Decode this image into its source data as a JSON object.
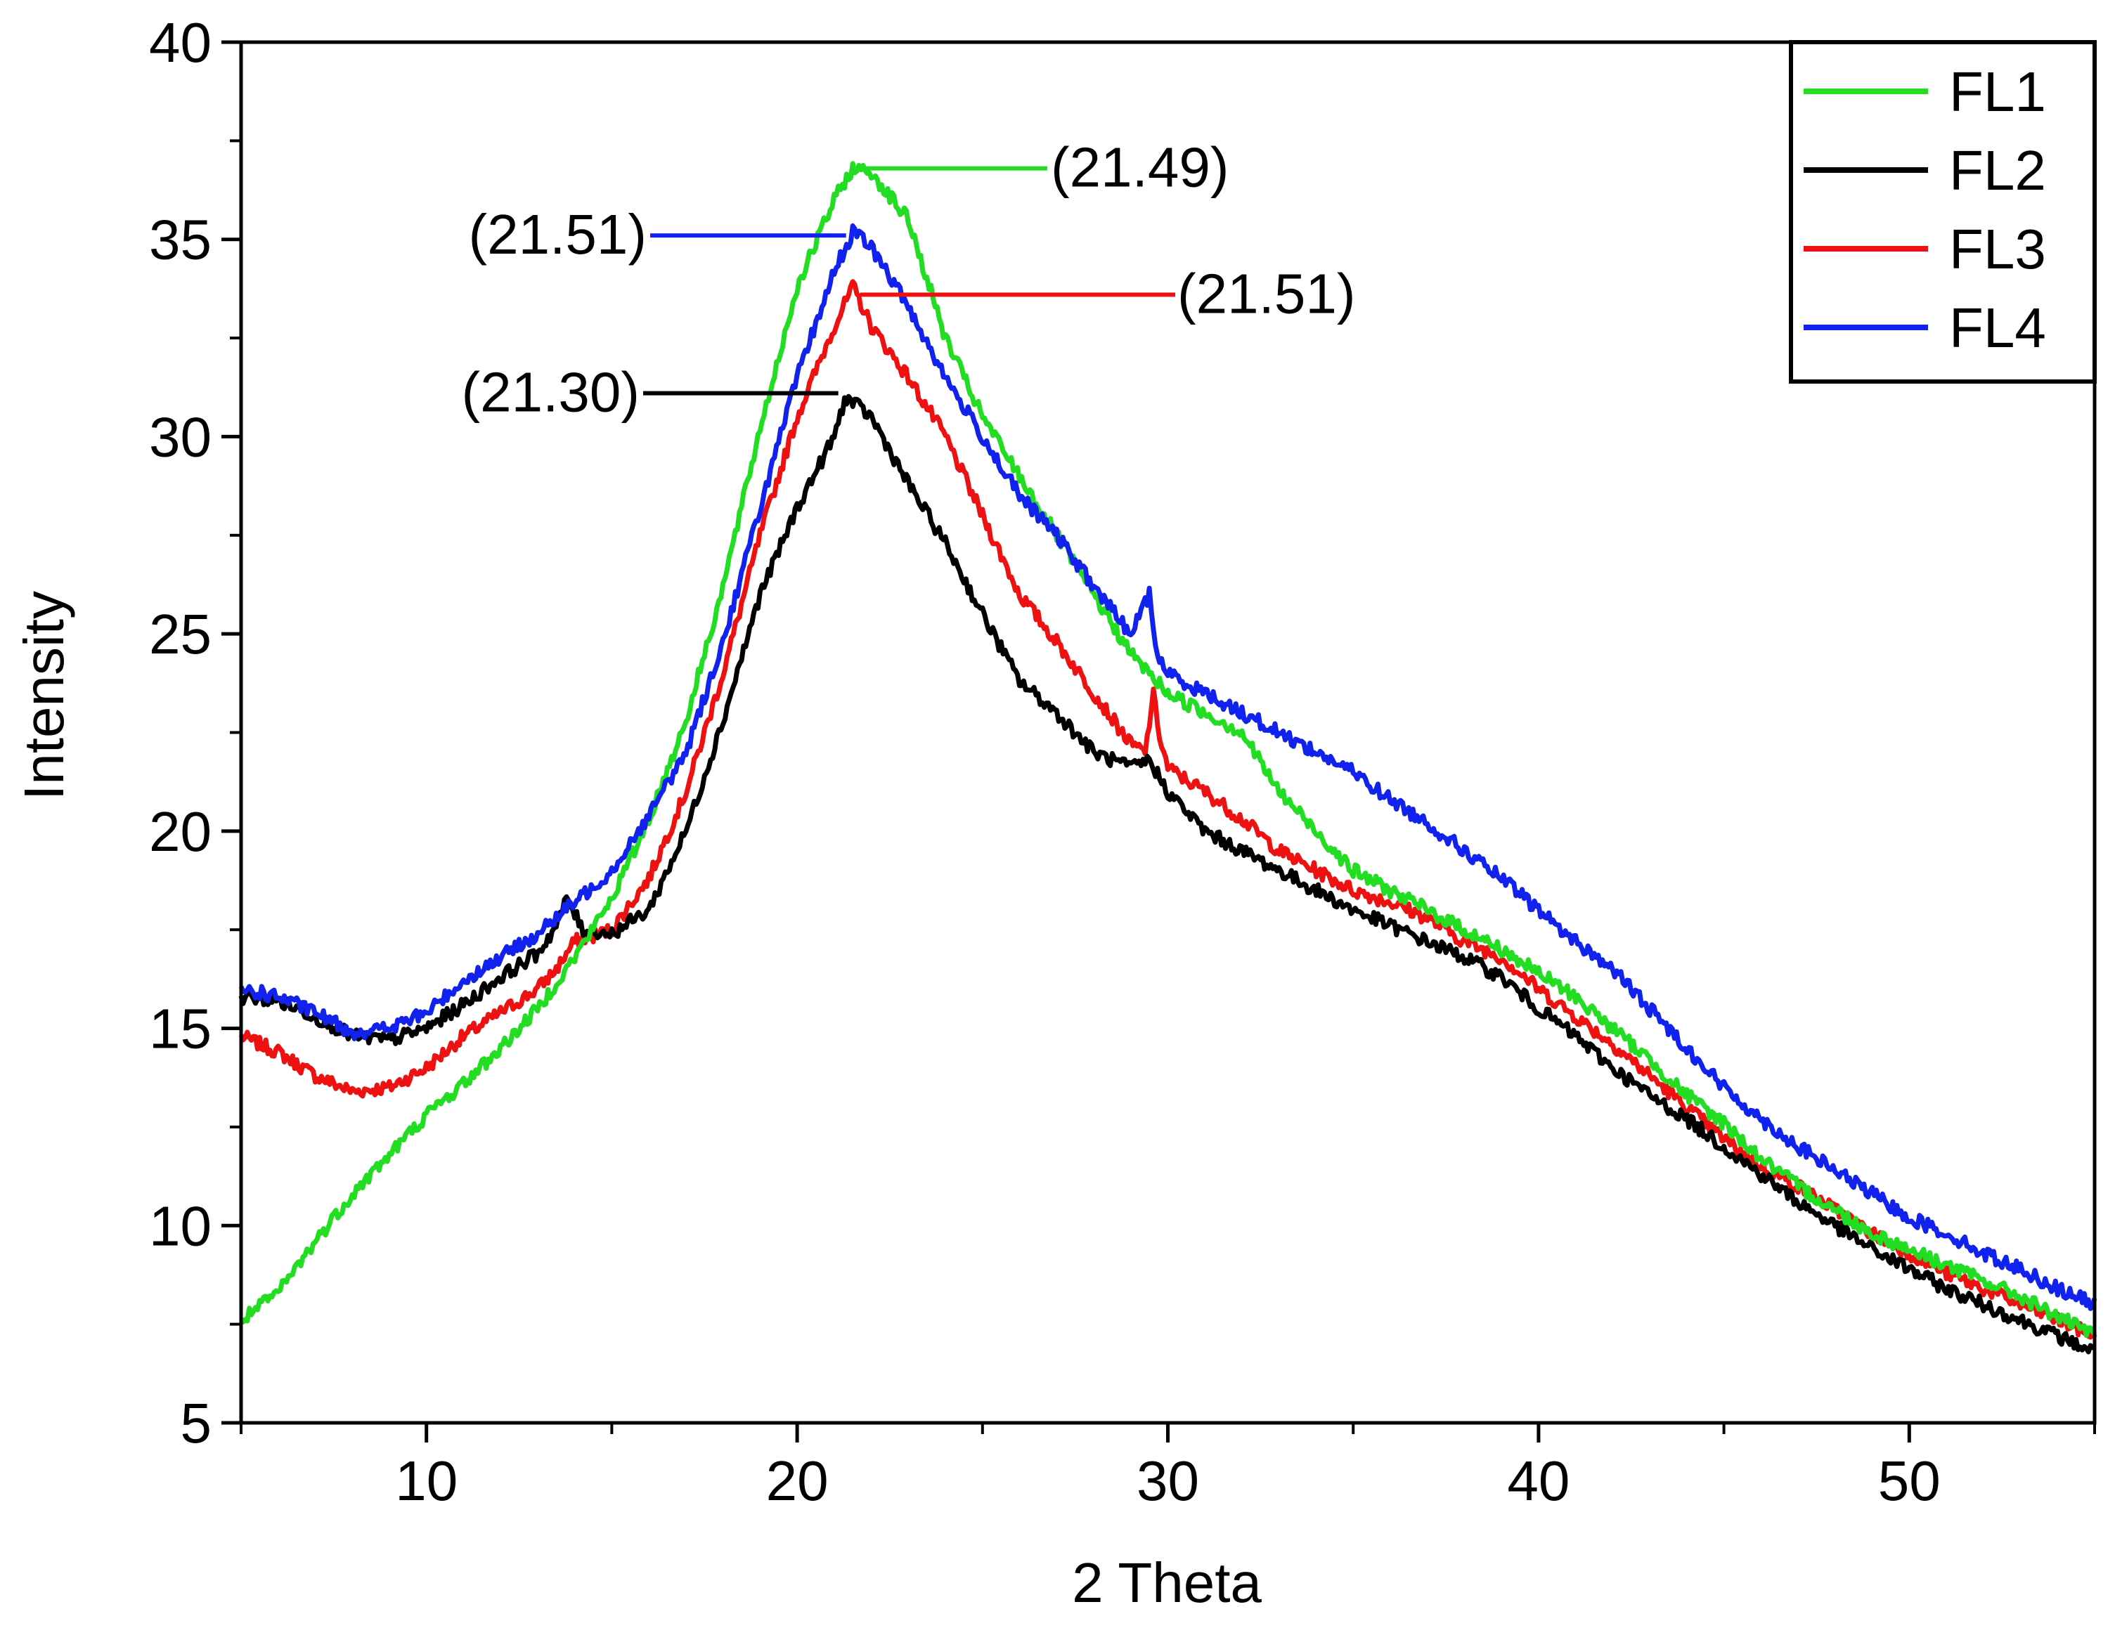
{
  "chart_data": {
    "type": "line",
    "title": "",
    "xlabel": "2 Theta",
    "ylabel": "Intensity",
    "xlim": [
      5,
      55
    ],
    "ylim": [
      5,
      40
    ],
    "xticks": [
      10,
      20,
      30,
      40,
      50
    ],
    "yticks": [
      5,
      10,
      15,
      20,
      25,
      30,
      35,
      40
    ],
    "grid": false,
    "legend_position": "top-right",
    "series": [
      {
        "name": "FL1",
        "color": "#22dd22",
        "points": [
          [
            5,
            7.6
          ],
          [
            6,
            8.3
          ],
          [
            7,
            9.6
          ],
          [
            8,
            10.8
          ],
          [
            9,
            11.8
          ],
          [
            10,
            12.8
          ],
          [
            11,
            13.6
          ],
          [
            12,
            14.5
          ],
          [
            13,
            15.5
          ],
          [
            14,
            16.8
          ],
          [
            15,
            18.3
          ],
          [
            16,
            20.3
          ],
          [
            17,
            22.8
          ],
          [
            18,
            26.2
          ],
          [
            19,
            30.2
          ],
          [
            20,
            33.8
          ],
          [
            21,
            36.0
          ],
          [
            21.49,
            36.8
          ],
          [
            22,
            36.7
          ],
          [
            23,
            35.5
          ],
          [
            24,
            32.5
          ],
          [
            25,
            30.5
          ],
          [
            26,
            29.0
          ],
          [
            27,
            27.5
          ],
          [
            28,
            26.0
          ],
          [
            29,
            24.5
          ],
          [
            30,
            23.5
          ],
          [
            31,
            23.0
          ],
          [
            32,
            22.5
          ],
          [
            33,
            21.0
          ],
          [
            34,
            20.0
          ],
          [
            35,
            19.0
          ],
          [
            36,
            18.5
          ],
          [
            37,
            18.0
          ],
          [
            38,
            17.5
          ],
          [
            39,
            17.0
          ],
          [
            40,
            16.4
          ],
          [
            41,
            15.8
          ],
          [
            42,
            15.0
          ],
          [
            43,
            14.2
          ],
          [
            44,
            13.3
          ],
          [
            45,
            12.6
          ],
          [
            46,
            11.7
          ],
          [
            47,
            11.0
          ],
          [
            48,
            10.4
          ],
          [
            49,
            9.8
          ],
          [
            50,
            9.4
          ],
          [
            51,
            9.0
          ],
          [
            52,
            8.6
          ],
          [
            53,
            8.2
          ],
          [
            54,
            7.7
          ],
          [
            55,
            7.2
          ]
        ]
      },
      {
        "name": "FL2",
        "color": "#000000",
        "points": [
          [
            5,
            15.8
          ],
          [
            6,
            15.7
          ],
          [
            7,
            15.3
          ],
          [
            8,
            14.8
          ],
          [
            9,
            14.7
          ],
          [
            10,
            15.0
          ],
          [
            11,
            15.6
          ],
          [
            12,
            16.3
          ],
          [
            13,
            16.9
          ],
          [
            13.5,
            17.6
          ],
          [
            13.8,
            18.3
          ],
          [
            14.2,
            17.5
          ],
          [
            15,
            17.4
          ],
          [
            16,
            18.0
          ],
          [
            17,
            20.0
          ],
          [
            18,
            22.8
          ],
          [
            19,
            26.0
          ],
          [
            20,
            28.2
          ],
          [
            21,
            30.0
          ],
          [
            21.3,
            31.0
          ],
          [
            22,
            30.5
          ],
          [
            23,
            28.8
          ],
          [
            24,
            27.3
          ],
          [
            25,
            25.5
          ],
          [
            26,
            23.8
          ],
          [
            27,
            23.0
          ],
          [
            28,
            22.0
          ],
          [
            29,
            21.6
          ],
          [
            29.5,
            21.8
          ],
          [
            30,
            21.0
          ],
          [
            31,
            20.0
          ],
          [
            32,
            19.5
          ],
          [
            33,
            19.0
          ],
          [
            34,
            18.5
          ],
          [
            35,
            18.0
          ],
          [
            36,
            17.6
          ],
          [
            37,
            17.2
          ],
          [
            38,
            16.8
          ],
          [
            39,
            16.3
          ],
          [
            40,
            15.5
          ],
          [
            41,
            14.8
          ],
          [
            42,
            14.0
          ],
          [
            43,
            13.3
          ],
          [
            44,
            12.7
          ],
          [
            45,
            12.0
          ],
          [
            46,
            11.3
          ],
          [
            47,
            10.6
          ],
          [
            48,
            10.0
          ],
          [
            49,
            9.4
          ],
          [
            50,
            8.9
          ],
          [
            51,
            8.4
          ],
          [
            52,
            8.0
          ],
          [
            53,
            7.6
          ],
          [
            54,
            7.2
          ],
          [
            55,
            6.8
          ]
        ]
      },
      {
        "name": "FL3",
        "color": "#ee1111",
        "points": [
          [
            5,
            14.8
          ],
          [
            6,
            14.4
          ],
          [
            7,
            13.8
          ],
          [
            8,
            13.4
          ],
          [
            9,
            13.5
          ],
          [
            10,
            14.0
          ],
          [
            11,
            14.8
          ],
          [
            12,
            15.4
          ],
          [
            13,
            16.0
          ],
          [
            13.5,
            16.5
          ],
          [
            14,
            17.2
          ],
          [
            15,
            17.5
          ],
          [
            16,
            18.8
          ],
          [
            17,
            21.0
          ],
          [
            18,
            24.0
          ],
          [
            19,
            27.5
          ],
          [
            20,
            30.5
          ],
          [
            21,
            32.8
          ],
          [
            21.51,
            33.8
          ],
          [
            22,
            32.8
          ],
          [
            23,
            31.5
          ],
          [
            24,
            30.0
          ],
          [
            25,
            28.0
          ],
          [
            26,
            26.0
          ],
          [
            27,
            24.8
          ],
          [
            28,
            23.5
          ],
          [
            29,
            22.2
          ],
          [
            29.4,
            22.0
          ],
          [
            29.6,
            23.5
          ],
          [
            29.8,
            22.3
          ],
          [
            30,
            21.6
          ],
          [
            31,
            21.0
          ],
          [
            32,
            20.3
          ],
          [
            33,
            19.5
          ],
          [
            34,
            19.0
          ],
          [
            35,
            18.5
          ],
          [
            36,
            18.2
          ],
          [
            37,
            17.8
          ],
          [
            38,
            17.2
          ],
          [
            39,
            16.8
          ],
          [
            40,
            16.0
          ],
          [
            41,
            15.3
          ],
          [
            42,
            14.6
          ],
          [
            43,
            13.8
          ],
          [
            44,
            13.0
          ],
          [
            45,
            12.2
          ],
          [
            46,
            11.5
          ],
          [
            47,
            11.0
          ],
          [
            48,
            10.4
          ],
          [
            49,
            9.8
          ],
          [
            50,
            9.3
          ],
          [
            51,
            8.8
          ],
          [
            52,
            8.4
          ],
          [
            53,
            8.0
          ],
          [
            54,
            7.6
          ],
          [
            55,
            7.2
          ]
        ]
      },
      {
        "name": "FL4",
        "color": "#1122ee",
        "points": [
          [
            5,
            16.0
          ],
          [
            6,
            15.8
          ],
          [
            7,
            15.4
          ],
          [
            8,
            14.9
          ],
          [
            9,
            15.0
          ],
          [
            10,
            15.4
          ],
          [
            11,
            16.2
          ],
          [
            12,
            16.8
          ],
          [
            13,
            17.4
          ],
          [
            14,
            18.2
          ],
          [
            15,
            19.0
          ],
          [
            16,
            20.4
          ],
          [
            17,
            22.0
          ],
          [
            18,
            24.8
          ],
          [
            19,
            28.2
          ],
          [
            20,
            31.5
          ],
          [
            21,
            34.2
          ],
          [
            21.51,
            35.2
          ],
          [
            22,
            34.8
          ],
          [
            23,
            33.3
          ],
          [
            24,
            31.5
          ],
          [
            25,
            30.0
          ],
          [
            26,
            28.5
          ],
          [
            27,
            27.5
          ],
          [
            28,
            26.2
          ],
          [
            29,
            25.0
          ],
          [
            29.5,
            26.0
          ],
          [
            29.7,
            24.5
          ],
          [
            30,
            24.0
          ],
          [
            31,
            23.5
          ],
          [
            32,
            23.0
          ],
          [
            33,
            22.5
          ],
          [
            34,
            22.0
          ],
          [
            35,
            21.5
          ],
          [
            36,
            20.8
          ],
          [
            37,
            20.2
          ],
          [
            38,
            19.5
          ],
          [
            39,
            18.8
          ],
          [
            40,
            18.0
          ],
          [
            41,
            17.2
          ],
          [
            42,
            16.5
          ],
          [
            43,
            15.5
          ],
          [
            44,
            14.5
          ],
          [
            45,
            13.5
          ],
          [
            46,
            12.7
          ],
          [
            47,
            12.0
          ],
          [
            48,
            11.4
          ],
          [
            49,
            10.8
          ],
          [
            50,
            10.2
          ],
          [
            51,
            9.8
          ],
          [
            52,
            9.3
          ],
          [
            53,
            8.9
          ],
          [
            54,
            8.4
          ],
          [
            55,
            8.0
          ]
        ]
      }
    ],
    "annotations": [
      {
        "series": "FL1",
        "label": "(21.49)",
        "x": 21.49,
        "y": 36.8
      },
      {
        "series": "FL4",
        "label": "(21.51)",
        "x": 21.51,
        "y": 35.1
      },
      {
        "series": "FL3",
        "label": "(21.51)",
        "x": 21.51,
        "y": 33.6
      },
      {
        "series": "FL2",
        "label": "(21.30)",
        "x": 21.3,
        "y": 31.1
      }
    ]
  }
}
